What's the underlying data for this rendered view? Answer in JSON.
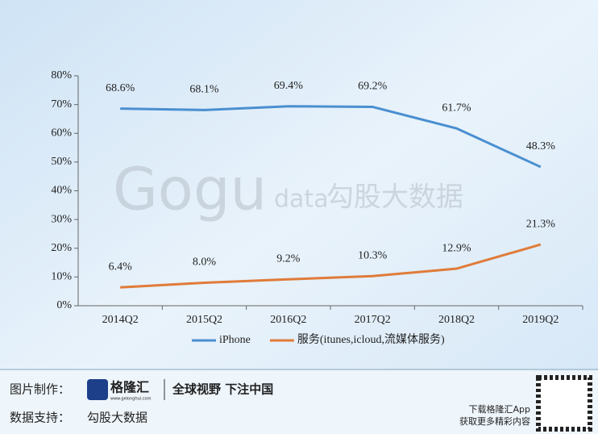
{
  "chart_data": {
    "type": "line",
    "categories": [
      "2014Q2",
      "2015Q2",
      "2016Q2",
      "2017Q2",
      "2018Q2",
      "2019Q2"
    ],
    "series": [
      {
        "name": "iPhone",
        "color": "#4a8fd0",
        "values": [
          68.6,
          68.1,
          69.4,
          69.2,
          61.7,
          48.3
        ],
        "value_labels": [
          "68.6%",
          "68.1%",
          "69.4%",
          "69.2%",
          "61.7%",
          "48.3%"
        ]
      },
      {
        "name": "服务(itunes,icloud,流媒体服务)",
        "color": "#e07b39",
        "values": [
          6.4,
          8.0,
          9.2,
          10.3,
          12.9,
          21.3
        ],
        "value_labels": [
          "6.4%",
          "8.0%",
          "9.2%",
          "10.3%",
          "12.9%",
          "21.3%"
        ]
      }
    ],
    "ylim": [
      0,
      80
    ],
    "yticks": [
      {
        "value": 0,
        "label": "0%"
      },
      {
        "value": 10,
        "label": "10%"
      },
      {
        "value": 20,
        "label": "20%"
      },
      {
        "value": 30,
        "label": "30%"
      },
      {
        "value": 40,
        "label": "40%"
      },
      {
        "value": 50,
        "label": "50%"
      },
      {
        "value": 60,
        "label": "60%"
      },
      {
        "value": 70,
        "label": "70%"
      },
      {
        "value": 80,
        "label": "80%"
      }
    ],
    "legend": "bottom"
  },
  "watermark": {
    "brand": "Gogu",
    "suffix": "data",
    "name": "勾股大数据"
  },
  "footer": {
    "made_by_label": "图片制作：",
    "logo": "格隆汇",
    "logo_url": "www.gelonghui.com",
    "slogan": "全球视野 下注中国",
    "data_label": "数据支持：",
    "data_source": "勾股大数据",
    "app_line1": "下载格隆汇App",
    "app_line2": "获取更多精彩内容"
  }
}
